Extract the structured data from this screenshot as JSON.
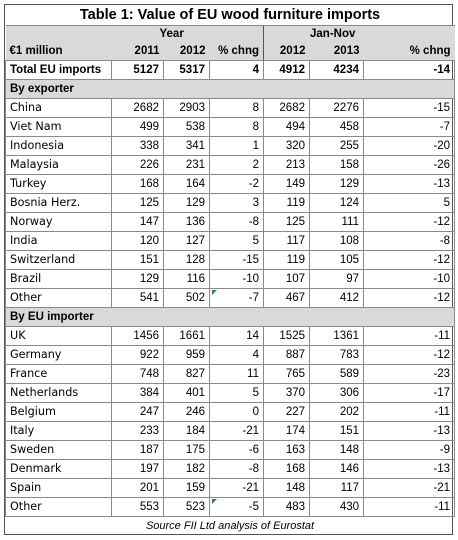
{
  "title": "Table 1: Value of EU wood furniture imports",
  "header": {
    "unit": "€1 million",
    "group_year": "Year",
    "group_jannov": "Jan-Nov",
    "cols": [
      "2011",
      "2012",
      "% chng",
      "2012",
      "2013",
      "% chng"
    ]
  },
  "total": {
    "label": "Total EU imports",
    "values": [
      "5127",
      "5317",
      "4",
      "4912",
      "4234",
      "-14"
    ]
  },
  "section_exporter": "By exporter",
  "exporters": [
    {
      "name": "China",
      "values": [
        "2682",
        "2903",
        "8",
        "2682",
        "2276",
        "-15"
      ]
    },
    {
      "name": "Viet Nam",
      "values": [
        "499",
        "538",
        "8",
        "494",
        "458",
        "-7"
      ]
    },
    {
      "name": "Indonesia",
      "values": [
        "338",
        "341",
        "1",
        "320",
        "255",
        "-20"
      ]
    },
    {
      "name": "Malaysia",
      "values": [
        "226",
        "231",
        "2",
        "213",
        "158",
        "-26"
      ]
    },
    {
      "name": "Turkey",
      "values": [
        "168",
        "164",
        "-2",
        "149",
        "129",
        "-13"
      ]
    },
    {
      "name": "Bosnia Herz.",
      "values": [
        "125",
        "129",
        "3",
        "119",
        "124",
        "5"
      ]
    },
    {
      "name": "Norway",
      "values": [
        "147",
        "136",
        "-8",
        "125",
        "111",
        "-12"
      ]
    },
    {
      "name": "India",
      "values": [
        "120",
        "127",
        "5",
        "117",
        "108",
        "-8"
      ]
    },
    {
      "name": "Switzerland",
      "values": [
        "151",
        "128",
        "-15",
        "119",
        "105",
        "-12"
      ]
    },
    {
      "name": "Brazil",
      "values": [
        "129",
        "116",
        "-10",
        "107",
        "97",
        "-10"
      ]
    },
    {
      "name": "Other",
      "values": [
        "541",
        "502",
        "-7",
        "467",
        "412",
        "-12"
      ]
    }
  ],
  "section_importer": "By EU importer",
  "importers": [
    {
      "name": "UK",
      "values": [
        "1456",
        "1661",
        "14",
        "1525",
        "1361",
        "-11"
      ]
    },
    {
      "name": "Germany",
      "values": [
        "922",
        "959",
        "4",
        "887",
        "783",
        "-12"
      ]
    },
    {
      "name": "France",
      "values": [
        "748",
        "827",
        "11",
        "765",
        "589",
        "-23"
      ]
    },
    {
      "name": "Netherlands",
      "values": [
        "384",
        "401",
        "5",
        "370",
        "306",
        "-17"
      ]
    },
    {
      "name": "Belgium",
      "values": [
        "247",
        "246",
        "0",
        "227",
        "202",
        "-11"
      ]
    },
    {
      "name": "Italy",
      "values": [
        "233",
        "184",
        "-21",
        "174",
        "151",
        "-13"
      ]
    },
    {
      "name": "Sweden",
      "values": [
        "187",
        "175",
        "-6",
        "163",
        "148",
        "-9"
      ]
    },
    {
      "name": "Denmark",
      "values": [
        "197",
        "182",
        "-8",
        "168",
        "146",
        "-13"
      ]
    },
    {
      "name": "Spain",
      "values": [
        "201",
        "159",
        "-21",
        "148",
        "117",
        "-21"
      ]
    },
    {
      "name": "Other",
      "values": [
        "553",
        "523",
        "-5",
        "483",
        "430",
        "-11"
      ]
    }
  ],
  "source": "Source FII Ltd analysis of Eurostat"
}
